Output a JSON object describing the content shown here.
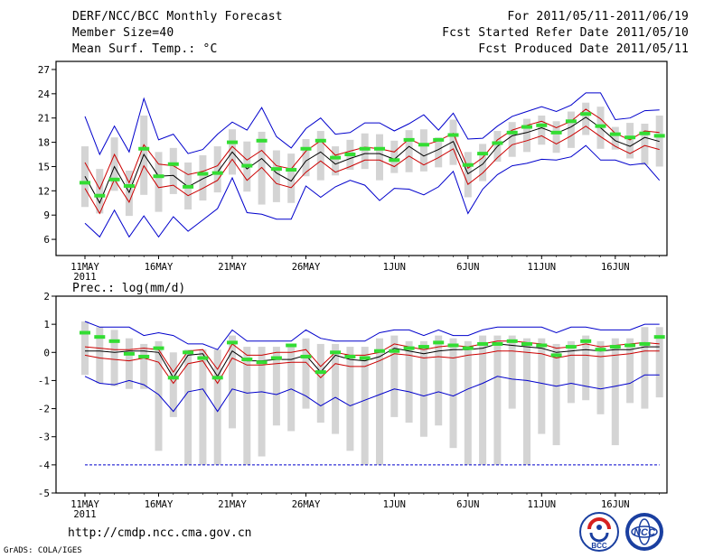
{
  "header": {
    "title": "DERF/NCC/BCC Monthly Forecast",
    "member_size": "Member Size=40",
    "variable": "Mean Surf. Temp.: °C",
    "forecast_period": "For 2011/05/11-2011/06/19",
    "refer_date": "Fcst Started Refer Date 2011/05/10",
    "produced_date": "Fcst Produced Date 2011/05/11"
  },
  "footer": {
    "url": "http://cmdp.ncc.cma.gov.cn",
    "credit": "GrADS: COLA/IGES",
    "logo_bcc_text": "BCC",
    "logo_ncc_text": "NCC"
  },
  "colors": {
    "max_min": "#0000cc",
    "spread": "#cc0000",
    "median": "#000000",
    "observed": "#33dd33",
    "box": "#d4d4d4",
    "frame": "#000000"
  },
  "chart_data": [
    {
      "type": "box-ensemble",
      "title": "Mean Surf. Temp.: °C",
      "xlabel": "",
      "ylabel": "°C",
      "ylim": [
        4,
        28
      ],
      "yticks": [
        6,
        9,
        12,
        15,
        18,
        21,
        24,
        27
      ],
      "xticks": [
        {
          "day": 0,
          "label": "11MAY",
          "sublabel": "2011"
        },
        {
          "day": 5,
          "label": "16MAY"
        },
        {
          "day": 10,
          "label": "21MAY"
        },
        {
          "day": 15,
          "label": "26MAY"
        },
        {
          "day": 21,
          "label": "1JUN"
        },
        {
          "day": 26,
          "label": "6JUN"
        },
        {
          "day": 31,
          "label": "11JUN"
        },
        {
          "day": 36,
          "label": "16JUN"
        }
      ],
      "days": 40,
      "series": [
        {
          "name": "max",
          "values": [
            21.2,
            16.5,
            20,
            16.8,
            23.4,
            18.3,
            19,
            16.6,
            17.1,
            19,
            20.5,
            19.5,
            22.3,
            18.7,
            17.3,
            19.7,
            21,
            19,
            19.2,
            20.4,
            20.4,
            19.4,
            20.3,
            21.4,
            19.5,
            21.6,
            18.4,
            18.5,
            20,
            21.2,
            21.8,
            22.4,
            21.8,
            22.6,
            24.1,
            24.1,
            20.8,
            21,
            21.9,
            22
          ]
        },
        {
          "name": "upper",
          "values": [
            15.5,
            12.2,
            16.5,
            13,
            17.7,
            15.3,
            15.1,
            14,
            14.4,
            15.1,
            17.5,
            15.8,
            17,
            15.1,
            14.7,
            16.9,
            18.2,
            16.4,
            16.9,
            17.4,
            17.2,
            16.8,
            18.4,
            17.6,
            18.2,
            19.1,
            14.8,
            16.1,
            18.3,
            19.5,
            20.1,
            20.6,
            19.8,
            20.6,
            22.1,
            20.9,
            19.1,
            18.3,
            19.4,
            19.2
          ]
        },
        {
          "name": "median",
          "values": [
            13.8,
            10.5,
            15,
            11.8,
            16.5,
            13.8,
            13.9,
            12.5,
            13.5,
            14.3,
            16.8,
            14.7,
            16,
            14.2,
            13.2,
            15.7,
            16.8,
            15.3,
            16,
            16.6,
            16.6,
            15.9,
            17.5,
            16.3,
            17.1,
            18.1,
            14.1,
            15.3,
            17.5,
            18.8,
            19.2,
            19.8,
            19.1,
            19.9,
            21.1,
            19.8,
            18.2,
            17.5,
            18.6,
            18.1
          ]
        },
        {
          "name": "lower",
          "values": [
            12.3,
            9.2,
            13.4,
            10.6,
            15.1,
            12.4,
            12.7,
            11.4,
            12.3,
            13.3,
            15.9,
            13.3,
            14.9,
            12.9,
            12.4,
            14.3,
            15.7,
            14.3,
            15,
            15.8,
            15.8,
            15,
            16.3,
            15.2,
            16.1,
            17.2,
            12.8,
            14.2,
            16.1,
            17.7,
            18.2,
            18.8,
            17.8,
            18.8,
            20,
            18.7,
            17.5,
            16.6,
            17.6,
            17.1
          ]
        },
        {
          "name": "min",
          "values": [
            8,
            6.3,
            9.6,
            6.3,
            8.9,
            6.3,
            8.8,
            7,
            8.4,
            9.8,
            13.6,
            9.3,
            9.1,
            8.5,
            8.5,
            12.6,
            11.2,
            12.5,
            13.3,
            12.7,
            10.8,
            12.3,
            12.2,
            11.5,
            12.5,
            14.4,
            9.2,
            12.2,
            14,
            15.1,
            15.4,
            15.9,
            15.8,
            16.2,
            17.6,
            15.8,
            15.8,
            15.2,
            15.4,
            13.3
          ]
        },
        {
          "name": "observed",
          "values": [
            13,
            11.4,
            13.4,
            12.6,
            17.2,
            13.8,
            15.3,
            12.5,
            14.1,
            14.2,
            18,
            15.1,
            18.2,
            14.7,
            14.6,
            17.2,
            18.2,
            16.1,
            16.5,
            17.2,
            17.2,
            15.8,
            18.3,
            17.7,
            18.3,
            18.9,
            15.2,
            16.6,
            17.9,
            19.2,
            19.9,
            20.1,
            19.2,
            20.6,
            21.5,
            20,
            19,
            18.6,
            19.1,
            18.8
          ]
        },
        {
          "name": "box_top",
          "values": [
            17.5,
            14.7,
            18.6,
            14.5,
            21.3,
            16.8,
            17.3,
            15.5,
            16.4,
            17.5,
            19.6,
            18.1,
            19.3,
            17,
            16.6,
            18.4,
            19.4,
            17.5,
            18.3,
            19.1,
            19,
            18.2,
            19.5,
            19.6,
            18.6,
            20.8,
            16.8,
            17.8,
            19.4,
            20.5,
            20.9,
            21.3,
            20.6,
            21.8,
            22.9,
            22.4,
            19.9,
            20.4,
            20.3,
            21.3
          ]
        },
        {
          "name": "box_bottom",
          "values": [
            10,
            9.2,
            12,
            8.9,
            11.5,
            9.4,
            11.6,
            9.7,
            10.8,
            11.8,
            14,
            11.9,
            10.3,
            10.6,
            10.5,
            13.8,
            13.3,
            13.9,
            14.6,
            14.7,
            13.3,
            14.2,
            14.3,
            14.4,
            14.9,
            15.2,
            11.2,
            13.2,
            15.6,
            16.2,
            16.8,
            17.7,
            16.7,
            17.3,
            18.9,
            17.2,
            17.1,
            16,
            15.2,
            15
          ]
        }
      ]
    },
    {
      "type": "box-ensemble",
      "title": "Prec.: log(mm/d)",
      "xlabel": "",
      "ylabel": "log(mm/d)",
      "ylim": [
        -5,
        2
      ],
      "yticks": [
        -5,
        -4,
        -3,
        -2,
        -1,
        0,
        1,
        2
      ],
      "xticks": [
        {
          "day": 0,
          "label": "11MAY",
          "sublabel": "2011"
        },
        {
          "day": 5,
          "label": "16MAY"
        },
        {
          "day": 10,
          "label": "21MAY"
        },
        {
          "day": 15,
          "label": "26MAY"
        },
        {
          "day": 21,
          "label": "1JUN"
        },
        {
          "day": 26,
          "label": "6JUN"
        },
        {
          "day": 31,
          "label": "11JUN"
        },
        {
          "day": 36,
          "label": "16JUN"
        }
      ],
      "days": 40,
      "floor_line": -4,
      "series": [
        {
          "name": "max",
          "values": [
            1.1,
            0.9,
            0.9,
            0.9,
            0.6,
            0.7,
            0.6,
            0.3,
            0.3,
            0.1,
            0.8,
            0.4,
            0.4,
            0.4,
            0.4,
            0.8,
            0.5,
            0.4,
            0.4,
            0.4,
            0.7,
            0.8,
            0.8,
            0.6,
            0.8,
            0.6,
            0.6,
            0.8,
            0.9,
            0.9,
            0.9,
            0.9,
            0.7,
            0.9,
            0.9,
            0.8,
            0.8,
            0.8,
            1,
            1
          ]
        },
        {
          "name": "upper",
          "values": [
            0.2,
            0.15,
            0.1,
            0.1,
            0.15,
            0.1,
            -0.7,
            0.05,
            0.1,
            -0.6,
            0.3,
            -0.1,
            -0.1,
            0,
            0,
            0.1,
            -0.5,
            0,
            -0.1,
            -0.1,
            0,
            0.3,
            0.2,
            0.1,
            0.2,
            0.25,
            0.2,
            0.3,
            0.4,
            0.4,
            0.35,
            0.3,
            0.15,
            0.2,
            0.3,
            0.2,
            0.25,
            0.3,
            0.35,
            0.3
          ]
        },
        {
          "name": "median",
          "values": [
            0.05,
            0.05,
            0,
            0.05,
            0.05,
            0,
            -0.9,
            -0.1,
            -0.05,
            -0.85,
            0.05,
            -0.3,
            -0.3,
            -0.25,
            -0.25,
            -0.1,
            -0.7,
            -0.1,
            -0.25,
            -0.3,
            -0.15,
            0.15,
            0.05,
            -0.05,
            0.05,
            0.1,
            0.1,
            0.15,
            0.3,
            0.25,
            0.2,
            0.15,
            0,
            0.05,
            0.1,
            0.05,
            0.1,
            0.1,
            0.2,
            0.2
          ]
        },
        {
          "name": "lower",
          "values": [
            -0.1,
            -0.2,
            -0.25,
            -0.3,
            -0.2,
            -0.35,
            -1.1,
            -0.4,
            -0.3,
            -1.1,
            -0.2,
            -0.45,
            -0.45,
            -0.4,
            -0.35,
            -0.35,
            -0.9,
            -0.4,
            -0.5,
            -0.5,
            -0.3,
            -0.05,
            -0.1,
            -0.2,
            -0.15,
            -0.2,
            -0.1,
            -0.05,
            0.05,
            0.05,
            0,
            -0.05,
            -0.2,
            -0.1,
            -0.1,
            -0.15,
            -0.1,
            -0.05,
            0.05,
            0.05
          ]
        },
        {
          "name": "min",
          "values": [
            -0.85,
            -1.1,
            -1.15,
            -1,
            -1.15,
            -1.5,
            -2.1,
            -1.4,
            -1.3,
            -2.1,
            -1.3,
            -1.45,
            -1.4,
            -1.5,
            -1.3,
            -1.55,
            -1.9,
            -1.6,
            -1.9,
            -1.7,
            -1.5,
            -1.3,
            -1.4,
            -1.55,
            -1.4,
            -1.55,
            -1.3,
            -1.1,
            -0.85,
            -0.95,
            -1,
            -1.1,
            -1.2,
            -1.1,
            -1.2,
            -1.3,
            -1.2,
            -1.1,
            -0.8,
            -0.8
          ]
        },
        {
          "name": "observed",
          "values": [
            0.7,
            0.55,
            0.4,
            -0.05,
            -0.15,
            0.15,
            -0.9,
            0,
            -0.2,
            -0.9,
            0.35,
            -0.25,
            -0.35,
            -0.2,
            0.25,
            -0.15,
            -0.7,
            0,
            -0.15,
            -0.2,
            0.05,
            0.05,
            0.15,
            0.2,
            0.35,
            0.25,
            0.15,
            0.3,
            0.3,
            0.4,
            0.3,
            0.25,
            -0.1,
            0.2,
            0.4,
            0.1,
            0.2,
            0.25,
            0.3,
            0.55
          ]
        },
        {
          "name": "box_top",
          "values": [
            1.1,
            0.9,
            0.8,
            0.5,
            0.3,
            0.4,
            0,
            0.1,
            0.1,
            0.1,
            0.6,
            0.2,
            0.2,
            0.2,
            0.3,
            0.5,
            0.3,
            0.3,
            0.2,
            0.2,
            0.5,
            0.6,
            0.4,
            0.4,
            0.6,
            0.5,
            0.4,
            0.6,
            0.6,
            0.6,
            0.5,
            0.5,
            0.3,
            0.4,
            0.6,
            0.4,
            0.5,
            0.5,
            0.9,
            0.9
          ]
        },
        {
          "name": "box_bottom",
          "values": [
            -0.8,
            -1.1,
            -1.2,
            -1.3,
            -1.3,
            -3.5,
            -2.3,
            -4,
            -4,
            -4,
            -2.7,
            -4,
            -3.7,
            -2.6,
            -2.8,
            -2,
            -2.5,
            -2.9,
            -3.5,
            -4,
            -4,
            -2.3,
            -2.5,
            -3,
            -2.6,
            -3.4,
            -4,
            -4,
            -4,
            -2,
            -4,
            -2.9,
            -3.3,
            -1.8,
            -1.7,
            -2.2,
            -3.3,
            -1.8,
            -2,
            -1.6
          ]
        }
      ]
    }
  ]
}
